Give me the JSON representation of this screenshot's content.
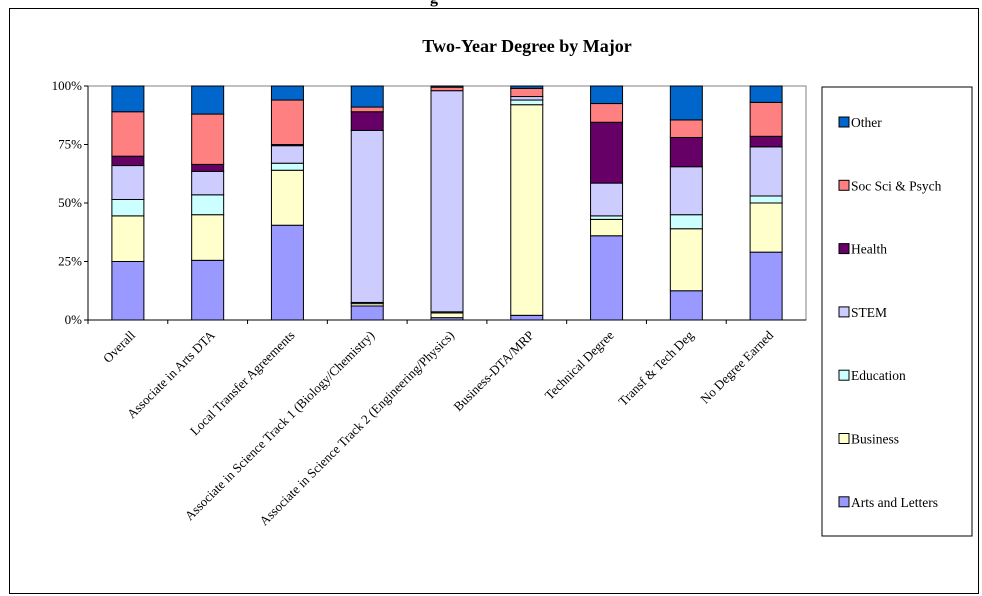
{
  "top_fragment": "g",
  "chart_data": {
    "type": "bar",
    "stacked": true,
    "percent": true,
    "title": "Two-Year Degree by Major",
    "xlabel": "",
    "ylabel": "",
    "ylim": [
      0,
      100
    ],
    "yticks": [
      "0%",
      "25%",
      "50%",
      "75%",
      "100%"
    ],
    "grid": false,
    "legend_position": "right",
    "categories": [
      "Overall",
      "Associate in Arts DTA",
      "Local Transfer Agreements",
      "Associate in Science Track 1 (Biology/Chemistry)",
      "Associate in Science Track 2 (Engineering/Physics)",
      "Business-DTA/MRP",
      "Technical Degree",
      "Transf & Tech Deg",
      "No Degree Earned"
    ],
    "series": [
      {
        "name": "Arts and Letters",
        "color": "#9999ff",
        "values": [
          25,
          25.5,
          40.5,
          6,
          1,
          2,
          36,
          12.5,
          29
        ]
      },
      {
        "name": "Business",
        "color": "#ffffcc",
        "values": [
          19.5,
          19.5,
          23.5,
          1,
          2,
          90,
          7,
          26.5,
          21
        ]
      },
      {
        "name": "Education",
        "color": "#ccffff",
        "values": [
          7,
          8.5,
          3,
          0.5,
          0.5,
          2,
          1.5,
          6,
          3
        ]
      },
      {
        "name": "STEM",
        "color": "#ccccff",
        "values": [
          14.5,
          10,
          7.5,
          73.5,
          94.5,
          1.5,
          14,
          20.5,
          21
        ]
      },
      {
        "name": "Health",
        "color": "#660066",
        "values": [
          4,
          3,
          0.5,
          8,
          0,
          0,
          26,
          12.5,
          4.5
        ]
      },
      {
        "name": "Soc Sci & Psych",
        "color": "#ff8080",
        "values": [
          19,
          21.5,
          19,
          2,
          1.5,
          3.5,
          8,
          7.5,
          14.5
        ]
      },
      {
        "name": "Other",
        "color": "#0066cc",
        "values": [
          11,
          12,
          6,
          9,
          0.5,
          1,
          7.5,
          14.5,
          7
        ]
      }
    ]
  }
}
